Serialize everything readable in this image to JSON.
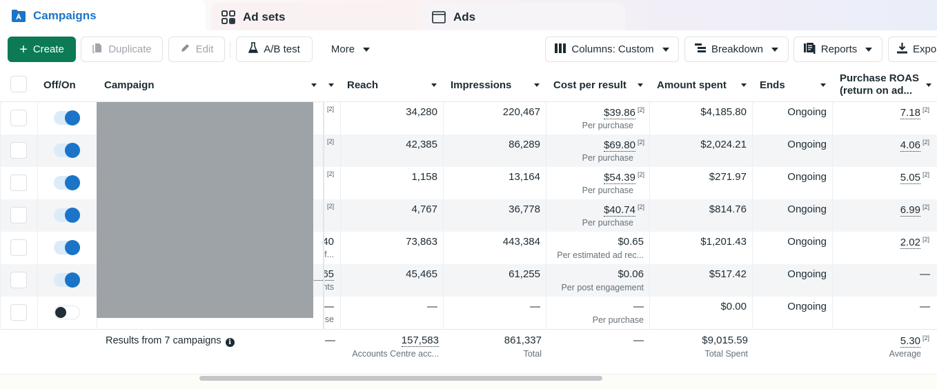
{
  "tabs": [
    {
      "label": "Campaigns",
      "icon": "campaign-folder-icon",
      "active": true
    },
    {
      "label": "Ad sets",
      "icon": "ad-sets-grid-icon",
      "active": false
    },
    {
      "label": "Ads",
      "icon": "ad-window-icon",
      "active": false
    }
  ],
  "toolbar": {
    "create": "Create",
    "duplicate": "Duplicate",
    "edit": "Edit",
    "ab_test": "A/B test",
    "more": "More",
    "columns": "Columns: Custom",
    "breakdown": "Breakdown",
    "reports": "Reports",
    "export": "Expo"
  },
  "colors": {
    "accent": "#1b74c8",
    "create": "#0c7a55",
    "toggle_on": "#1b74c8"
  },
  "table": {
    "headers": {
      "off_on": "Off/On",
      "campaign": "Campaign",
      "reach": "Reach",
      "impressions": "Impressions",
      "cost_per_result": "Cost per result",
      "amount_spent": "Amount spent",
      "ends": "Ends",
      "roas_line1": "Purchase ROAS",
      "roas_line2": "(return on ad..."
    },
    "rows": [
      {
        "on": true,
        "hidden_col": "[2]",
        "hidden_sub": "",
        "reach": "34,280",
        "impressions": "220,467",
        "cpr": "$39.86",
        "cpr_fn": "[2]",
        "cpr_sub": "Per purchase",
        "spent": "$4,185.80",
        "ends": "Ongoing",
        "roas": "7.18",
        "roas_fn": "[2]"
      },
      {
        "on": true,
        "hidden_col": "[2]",
        "hidden_sub": "",
        "reach": "42,385",
        "impressions": "86,289",
        "cpr": "$69.80",
        "cpr_fn": "[2]",
        "cpr_sub": "Per purchase",
        "spent": "$2,024.21",
        "ends": "Ongoing",
        "roas": "4.06",
        "roas_fn": "[2]"
      },
      {
        "on": true,
        "hidden_col": "[2]",
        "hidden_sub": "",
        "reach": "1,158",
        "impressions": "13,164",
        "cpr": "$54.39",
        "cpr_fn": "[2]",
        "cpr_sub": "Per purchase",
        "spent": "$271.97",
        "ends": "Ongoing",
        "roas": "5.05",
        "roas_fn": "[2]"
      },
      {
        "on": true,
        "hidden_col": "[2]",
        "hidden_sub": "",
        "reach": "4,767",
        "impressions": "36,778",
        "cpr": "$40.74",
        "cpr_fn": "[2]",
        "cpr_sub": "Per purchase",
        "spent": "$814.76",
        "ends": "Ongoing",
        "roas": "6.99",
        "roas_fn": "[2]"
      },
      {
        "on": true,
        "hidden_col": "40",
        "hidden_sub": "if...",
        "reach": "73,863",
        "impressions": "443,384",
        "cpr": "$0.65",
        "cpr_fn": "",
        "cpr_sub": "Per estimated ad rec...",
        "spent": "$1,201.43",
        "ends": "Ongoing",
        "roas": "2.02",
        "roas_fn": "[2]"
      },
      {
        "on": true,
        "hidden_col": "65",
        "hidden_sub": "nts",
        "reach": "45,465",
        "impressions": "61,255",
        "cpr": "$0.06",
        "cpr_fn": "",
        "cpr_sub": "Per post engagement",
        "spent": "$517.42",
        "ends": "Ongoing",
        "roas": "—",
        "roas_fn": ""
      },
      {
        "on": false,
        "hidden_col": "—",
        "hidden_sub": "se",
        "reach": "—",
        "impressions": "—",
        "cpr": "—",
        "cpr_fn": "",
        "cpr_sub": "Per purchase",
        "spent": "$0.00",
        "ends": "Ongoing",
        "roas": "—",
        "roas_fn": ""
      }
    ],
    "summary": {
      "label": "Results from 7 campaigns",
      "hidden_col": "—",
      "reach": "157,583",
      "reach_sub": "Accounts Centre acc...",
      "impressions": "861,337",
      "impressions_sub": "Total",
      "cpr": "—",
      "spent": "$9,015.59",
      "spent_sub": "Total Spent",
      "roas": "5.30",
      "roas_fn": "[2]",
      "roas_sub": "Average"
    }
  }
}
